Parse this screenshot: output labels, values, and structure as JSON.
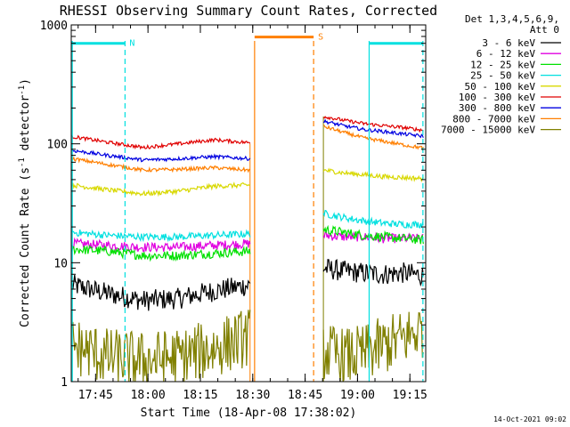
{
  "chart_data": {
    "type": "line",
    "title": "RHESSI Observing Summary Count Rates, Corrected",
    "xlabel": "Start Time (18-Apr-08 17:38:02)",
    "ylabel_main": "Corrected Count Rate (s",
    "ylabel_sup1": "-1",
    "ylabel_mid": " detector",
    "ylabel_sup2": "-1",
    "ylabel_end": ")",
    "y_scale": "log",
    "ylim": [
      1,
      1000
    ],
    "xlim_minutes": [
      0,
      101.5
    ],
    "y_ticks": [
      {
        "v": 1,
        "label": "1"
      },
      {
        "v": 10,
        "label": "10"
      },
      {
        "v": 100,
        "label": "100"
      },
      {
        "v": 1000,
        "label": "1000"
      }
    ],
    "x_ticks": [
      {
        "m": 6.97,
        "label": "17:45"
      },
      {
        "m": 21.97,
        "label": "18:00"
      },
      {
        "m": 36.97,
        "label": "18:15"
      },
      {
        "m": 51.97,
        "label": "18:30"
      },
      {
        "m": 66.97,
        "label": "18:45"
      },
      {
        "m": 81.97,
        "label": "19:00"
      },
      {
        "m": 96.97,
        "label": "19:15"
      }
    ],
    "legend_header": [
      "Det 1,3,4,5,6,9,",
      "Att 0"
    ],
    "legend_position": "right",
    "series": [
      {
        "name": "3 - 6 keV",
        "color": "#000000",
        "seg1": [
          6.5,
          5.5,
          4.8,
          5.0,
          5.8,
          6.5
        ],
        "seg2": [
          9.0,
          8.5,
          8.2,
          8.0,
          8.2,
          7.8
        ],
        "noise": 0.09
      },
      {
        "name": "6 - 12 keV",
        "color": "#e000e0",
        "seg1": [
          14.5,
          14.0,
          13.5,
          13.5,
          14.0,
          14.5
        ],
        "seg2": [
          17.0,
          16.5,
          16.5,
          16.0,
          16.0,
          16.0
        ],
        "noise": 0.04
      },
      {
        "name": "12 - 25 keV",
        "color": "#00e000",
        "seg1": [
          13.0,
          12.5,
          11.5,
          11.5,
          12.0,
          12.5
        ],
        "seg2": [
          19.0,
          18.0,
          17.0,
          16.5,
          16.0,
          15.5
        ],
        "noise": 0.04
      },
      {
        "name": "25 - 50 keV",
        "color": "#00e0e0",
        "seg1": [
          18.0,
          17.0,
          16.5,
          16.5,
          17.0,
          17.5
        ],
        "seg2": [
          26.0,
          24.0,
          22.5,
          21.5,
          21.0,
          21.0
        ],
        "noise": 0.03
      },
      {
        "name": "50 - 100 keV",
        "color": "#d8d800",
        "seg1": [
          45.0,
          41.0,
          38.0,
          40.0,
          44.0,
          45.0
        ],
        "seg2": [
          60.0,
          57.0,
          55.0,
          53.0,
          52.0,
          51.0
        ],
        "noise": 0.02
      },
      {
        "name": "100 - 300 keV",
        "color": "#e00000",
        "seg1": [
          115.0,
          103.0,
          93.0,
          100.0,
          108.0,
          102.0
        ],
        "seg2": [
          170.0,
          158.0,
          148.0,
          142.0,
          137.0,
          130.0
        ],
        "noise": 0.015
      },
      {
        "name": "300 - 800 keV",
        "color": "#0000e0",
        "seg1": [
          88.0,
          80.0,
          73.0,
          75.0,
          78.0,
          75.0
        ],
        "seg2": [
          155.0,
          142.0,
          132.0,
          127.0,
          121.0,
          116.0
        ],
        "noise": 0.015
      },
      {
        "name": "800 - 7000 keV",
        "color": "#ff7f00",
        "seg1": [
          75.0,
          67.0,
          60.0,
          61.0,
          63.0,
          60.0
        ],
        "seg2": [
          140.0,
          125.0,
          112.0,
          105.0,
          98.0,
          92.0
        ],
        "noise": 0.015
      },
      {
        "name": "7000 - 15000 keV",
        "color": "#808000",
        "seg1": [
          2.0,
          1.6,
          1.5,
          1.6,
          1.9,
          2.4
        ],
        "seg2": [
          1.8,
          1.6,
          1.7,
          2.0,
          2.3,
          2.8
        ],
        "noise": 0.25
      }
    ],
    "gap": {
      "start": 51.2,
      "end": 72.2
    },
    "flags": [
      {
        "label": "N",
        "color": "#00e0e0",
        "start": 0,
        "end": 15.4,
        "y": 700
      },
      {
        "label": "S",
        "color": "#ff7f00",
        "start": 52.5,
        "end": 69.4,
        "y": 790
      },
      {
        "label": "",
        "color": "#00e0e0",
        "start": 85.3,
        "end": 100.7,
        "y": 700
      }
    ],
    "vlines": [
      {
        "m": 0.3,
        "color": "#00e0e0",
        "style": "solid"
      },
      {
        "m": 15.4,
        "color": "#00e0e0",
        "style": "dashed"
      },
      {
        "m": 52.5,
        "color": "#ff7f00",
        "style": "solid"
      },
      {
        "m": 69.4,
        "color": "#ff7f00",
        "style": "dashed"
      },
      {
        "m": 85.3,
        "color": "#00e0e0",
        "style": "solid"
      },
      {
        "m": 100.7,
        "color": "#00e0e0",
        "style": "dashed"
      }
    ],
    "timestamp": "14-Oct-2021 09:02"
  }
}
